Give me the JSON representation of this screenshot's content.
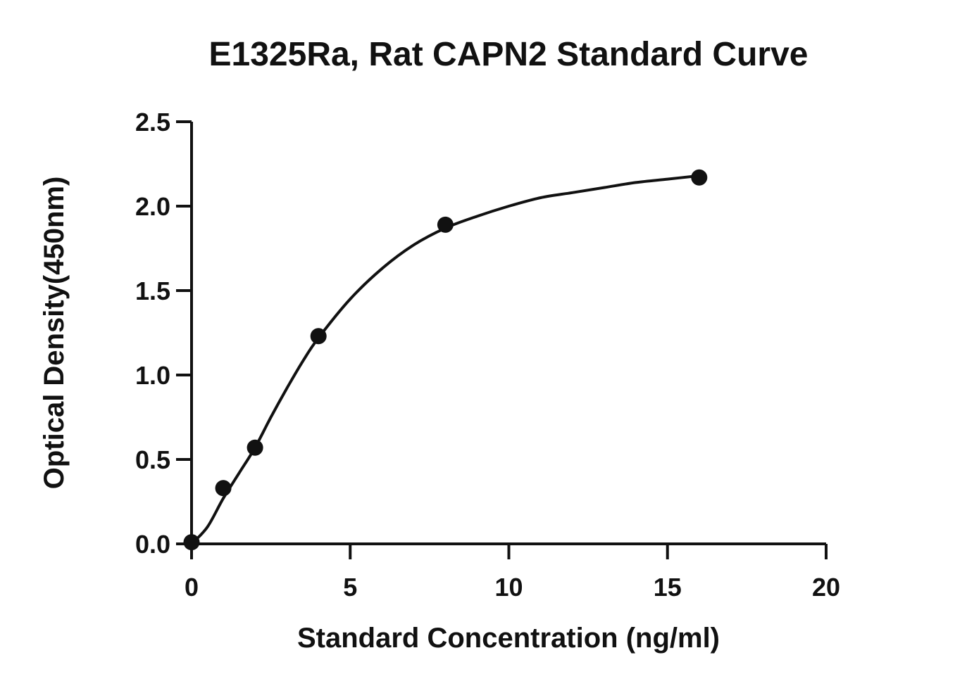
{
  "chart_data": {
    "type": "scatter",
    "title": "E1325Ra, Rat CAPN2 Standard Curve",
    "xlabel": "Standard Concentration (ng/ml)",
    "ylabel": "Optical Density(450nm)",
    "xlim": [
      0,
      20
    ],
    "ylim": [
      0,
      2.5
    ],
    "x_ticks": [
      0,
      5,
      10,
      15,
      20
    ],
    "x_tick_labels": [
      "0",
      "5",
      "10",
      "15",
      "20"
    ],
    "y_ticks": [
      0,
      0.5,
      1.0,
      1.5,
      2.0,
      2.5
    ],
    "y_tick_labels": [
      "0.0",
      "0.5",
      "1.0",
      "1.5",
      "2.0",
      "2.5"
    ],
    "grid": false,
    "legend": "none",
    "series": [
      {
        "x": [
          0,
          1,
          2,
          4,
          8,
          16
        ],
        "y": [
          0.01,
          0.33,
          0.57,
          1.23,
          1.89,
          2.17
        ]
      }
    ],
    "fit_curve": {
      "x": [
        0,
        0.5,
        1,
        1.5,
        2,
        2.5,
        3,
        3.5,
        4,
        5,
        6,
        7,
        8,
        9,
        10,
        11,
        12,
        13,
        14,
        15,
        16
      ],
      "y": [
        0.0,
        0.1,
        0.27,
        0.42,
        0.57,
        0.75,
        0.92,
        1.08,
        1.22,
        1.45,
        1.63,
        1.77,
        1.87,
        1.94,
        2.0,
        2.05,
        2.08,
        2.11,
        2.14,
        2.16,
        2.18
      ]
    },
    "colors": {
      "ink": "#111111"
    }
  }
}
